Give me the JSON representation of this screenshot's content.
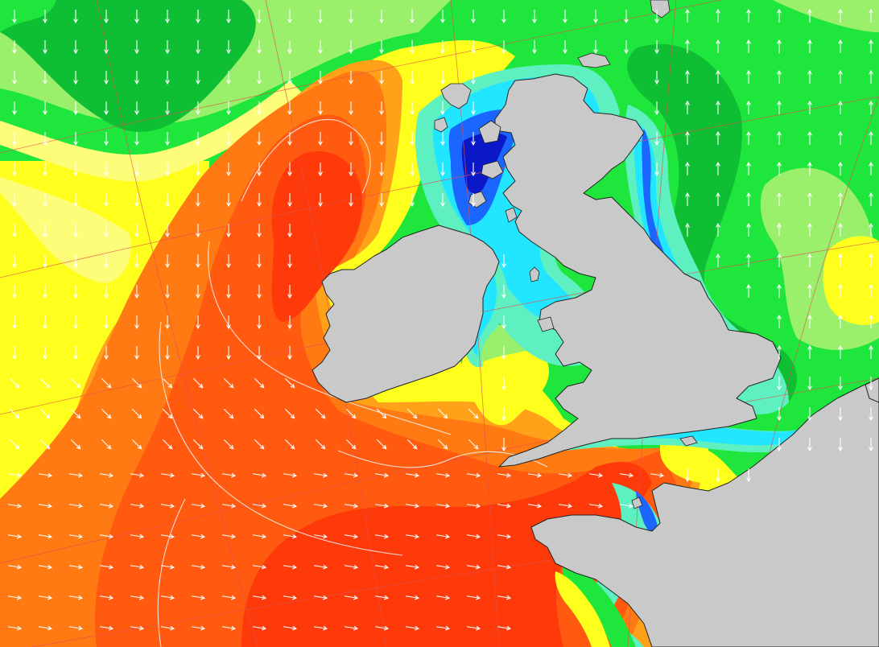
{
  "map": {
    "colors": {
      "deep_red": "#ff3a0a",
      "red_orange": "#ff5a10",
      "orange": "#ff7a12",
      "light_orange": "#ffa21a",
      "yellow": "#ffff1e",
      "light_yellow": "#fdfd7a",
      "light_green": "#9af06a",
      "green": "#1ee63c",
      "dark_green": "#0fbf33",
      "teal": "#5ef0c0",
      "cyan": "#22e6ff",
      "blue": "#1a66ff",
      "navy": "#0a18c8",
      "land": "#c9c9c9",
      "arrow": "#ffffff",
      "grid": "#e05050"
    },
    "icons": [
      "wave-direction-arrow-icon"
    ]
  }
}
